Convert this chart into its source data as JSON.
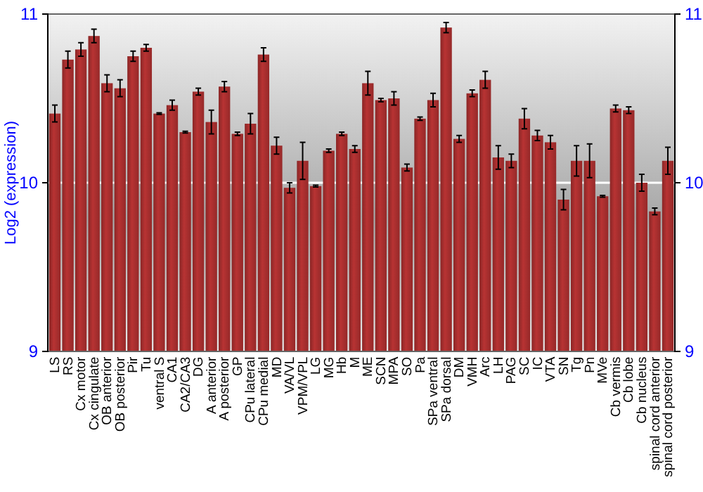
{
  "chart_data": {
    "type": "bar",
    "ylabel": "Log2 (expression)",
    "categories": [
      "LS",
      "RS",
      "Cx motor",
      "Cx cingulate",
      "OB anterior",
      "OB posterior",
      "Pir",
      "Tu",
      "ventral S",
      "CA1",
      "CA2/CA3",
      "DG",
      "A anterior",
      "A posterior",
      "GP",
      "CPu lateral",
      "CPu medial",
      "MD",
      "VA/VL",
      "VPM/VPL",
      "LG",
      "MG",
      "Hb",
      "M",
      "ME",
      "SCN",
      "MPA",
      "SO",
      "Pa",
      "SPa ventral",
      "SPa dorsal",
      "DM",
      "VMH",
      "Arc",
      "LH",
      "PAG",
      "SC",
      "IC",
      "VTA",
      "SN",
      "Tg",
      "Pn",
      "MVe",
      "Cb vermis",
      "Cb lobe",
      "Cb nucleus",
      "spinal cord anterior",
      "spinal cord posterior"
    ],
    "values": [
      10.41,
      10.73,
      10.79,
      10.87,
      10.59,
      10.56,
      10.75,
      10.8,
      10.41,
      10.46,
      10.3,
      10.54,
      10.36,
      10.57,
      10.29,
      10.35,
      10.76,
      10.22,
      9.97,
      10.13,
      9.98,
      10.19,
      10.29,
      10.2,
      10.59,
      10.49,
      10.5,
      10.09,
      10.38,
      10.49,
      10.92,
      10.26,
      10.53,
      10.61,
      10.15,
      10.13,
      10.38,
      10.28,
      10.24,
      9.9,
      10.13,
      10.13,
      9.92,
      10.44,
      10.43,
      10.0,
      9.83,
      10.13
    ],
    "errors": [
      0.05,
      0.05,
      0.04,
      0.04,
      0.05,
      0.05,
      0.03,
      0.02,
      0.005,
      0.03,
      0.005,
      0.02,
      0.07,
      0.03,
      0.01,
      0.06,
      0.04,
      0.05,
      0.03,
      0.11,
      0.005,
      0.01,
      0.01,
      0.02,
      0.07,
      0.01,
      0.04,
      0.02,
      0.01,
      0.04,
      0.03,
      0.02,
      0.02,
      0.05,
      0.07,
      0.04,
      0.06,
      0.03,
      0.04,
      0.06,
      0.09,
      0.1,
      0.005,
      0.02,
      0.02,
      0.05,
      0.02,
      0.08
    ],
    "color": "#b83333",
    "ylim": [
      9,
      11
    ],
    "yticks": [
      9,
      10,
      11
    ],
    "y2lim": [
      9,
      11
    ],
    "y2ticks": [
      9,
      10,
      11
    ],
    "grid": "y"
  }
}
